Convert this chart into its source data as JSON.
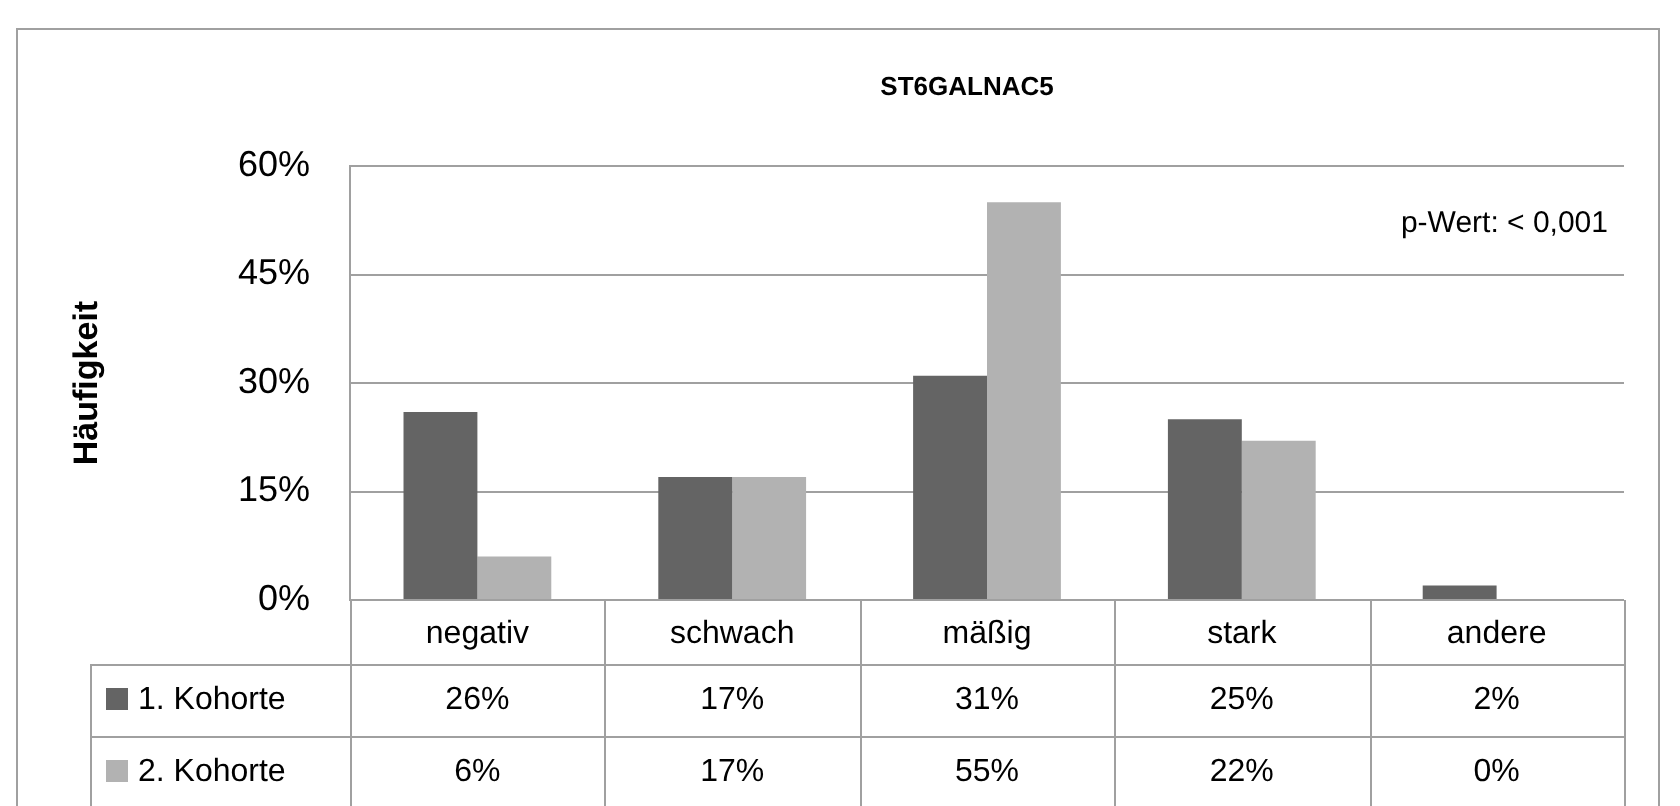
{
  "chart_data": {
    "type": "bar",
    "title": "ST6GALNAC5",
    "ylabel": "Häufigkeit",
    "categories": [
      "negativ",
      "schwach",
      "mäßig",
      "stark",
      "andere"
    ],
    "series": [
      {
        "name": "1. Kohorte",
        "color": "#646464",
        "values": [
          26,
          17,
          31,
          25,
          2
        ],
        "value_labels": [
          "26%",
          "17%",
          "31%",
          "25%",
          "2%"
        ]
      },
      {
        "name": "2. Kohorte",
        "color": "#b2b2b2",
        "values": [
          6,
          17,
          55,
          22,
          0
        ],
        "value_labels": [
          "6%",
          "17%",
          "55%",
          "22%",
          "0%"
        ]
      }
    ],
    "ylim": [
      0,
      60
    ],
    "yticks": [
      {
        "value": 0,
        "label": "0%"
      },
      {
        "value": 15,
        "label": "15%"
      },
      {
        "value": 30,
        "label": "30%"
      },
      {
        "value": 45,
        "label": "45%"
      },
      {
        "value": 60,
        "label": "60%"
      }
    ],
    "annotations": [
      "p-Wert: < 0,001"
    ],
    "grid": "y",
    "legend": "bottom left"
  }
}
